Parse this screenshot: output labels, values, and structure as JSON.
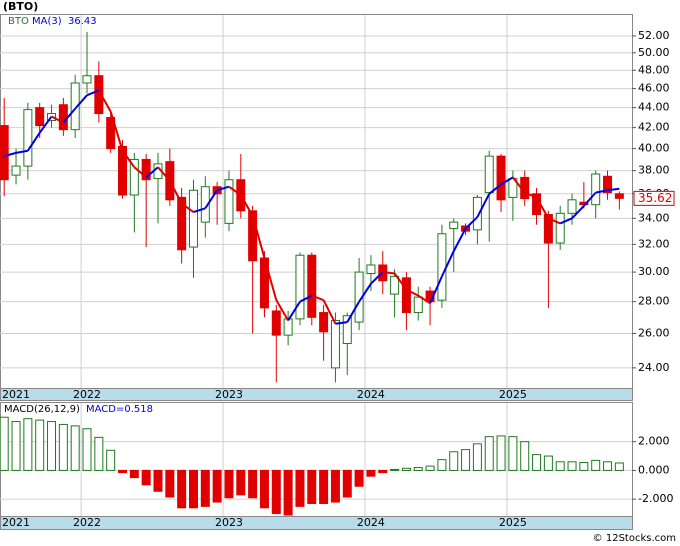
{
  "footer": "© 12Stocks.com",
  "chart_data": [
    {
      "type": "candlestick",
      "title": "(BTO)",
      "log_scale": true,
      "grid": true,
      "categories": [
        "2021",
        null,
        null,
        null,
        null,
        null,
        null,
        "2022",
        null,
        null,
        null,
        null,
        null,
        null,
        null,
        null,
        null,
        null,
        null,
        "2023",
        null,
        null,
        null,
        null,
        null,
        null,
        null,
        null,
        null,
        null,
        null,
        "2024",
        null,
        null,
        null,
        null,
        null,
        null,
        null,
        null,
        null,
        null,
        null,
        "2025",
        null,
        null,
        null,
        null,
        null,
        null,
        null,
        null,
        null
      ],
      "series": [
        {
          "name": "BTO",
          "colors": {
            "up": "#1f7a1f",
            "down": "#e00000"
          },
          "open": [
            42.2,
            37.6,
            38.4,
            44,
            42.7,
            44.3,
            41.8,
            46.6,
            47.4,
            43,
            40.2,
            35.9,
            39,
            37.3,
            38.8,
            35.7,
            31.8,
            33.7,
            36.6,
            33.6,
            37.2,
            34.6,
            31,
            27.4,
            25.9,
            26.9,
            31.2,
            27.3,
            24,
            25.4,
            26.7,
            29.9,
            30.5,
            28.5,
            29.6,
            27.3,
            28.7,
            28.1,
            33.2,
            33.4,
            33.1,
            36.1,
            39.3,
            35.7,
            37.4,
            36,
            34.3,
            32.1,
            34.4,
            35.3,
            35.1,
            37.5,
            36
          ],
          "high": [
            45,
            40,
            44.5,
            44.5,
            44.3,
            45,
            47.5,
            52.5,
            49,
            43.5,
            40.8,
            39.6,
            39.5,
            39.6,
            40,
            36.5,
            37.2,
            37.5,
            37,
            38,
            39.5,
            35,
            31.5,
            27.8,
            27.4,
            31.4,
            31.4,
            27.8,
            27.3,
            27.3,
            31,
            31.2,
            31.5,
            30.2,
            30,
            29,
            29,
            33.5,
            34,
            33.6,
            35.9,
            39.8,
            39.5,
            38,
            38,
            36.5,
            34.6,
            35,
            36,
            37,
            38,
            38,
            36.2
          ],
          "low": [
            35.8,
            36.8,
            37.2,
            41,
            42,
            41.2,
            41,
            45.5,
            42.5,
            39.6,
            35.6,
            32.9,
            31.8,
            33.6,
            35,
            30.6,
            29.6,
            32.5,
            33.5,
            33,
            34,
            26,
            27,
            23.2,
            25.3,
            26.5,
            26.5,
            24.4,
            23.2,
            23.6,
            26.2,
            28.7,
            28.5,
            27,
            26.2,
            26.8,
            26.5,
            27.6,
            30,
            32.7,
            32,
            32.2,
            34.5,
            33.8,
            35,
            33.5,
            27.6,
            31.6,
            33.5,
            34.8,
            34,
            35.5,
            34.7
          ],
          "close": [
            37.2,
            38.4,
            43.8,
            42.2,
            43.4,
            41.8,
            46.6,
            47.4,
            43.4,
            40,
            35.9,
            39,
            37.2,
            38.6,
            35.5,
            31.6,
            36.3,
            36.6,
            36.0,
            37.2,
            34.6,
            30.8,
            27.6,
            25.9,
            26.9,
            31.2,
            27,
            26.1,
            26.8,
            27.1,
            30,
            30.5,
            29.4,
            29.7,
            27.3,
            28.3,
            28,
            32.8,
            33.7,
            33,
            35.7,
            39.3,
            35.5,
            37.3,
            35.6,
            34.3,
            32.1,
            34.4,
            35.5,
            35.1,
            37.7,
            36.1,
            35.62
          ],
          "last_label": "35.62"
        },
        {
          "name": "MA(3)",
          "type": "line",
          "color_up": "#0000dd",
          "color_down": "#e00000",
          "value_label": "36.43",
          "values": [
            39.3,
            39.6,
            39.8,
            41.5,
            43.1,
            42.5,
            43.9,
            45.3,
            45.8,
            43.6,
            39.8,
            38.3,
            37.4,
            38.3,
            37.1,
            35.2,
            34.5,
            34.8,
            36.3,
            36.6,
            35.9,
            34.2,
            31.0,
            28.1,
            26.8,
            28.0,
            28.4,
            28.1,
            26.6,
            26.7,
            28.0,
            29.2,
            30.0,
            29.9,
            28.8,
            28.4,
            27.9,
            29.7,
            31.5,
            33.2,
            34.1,
            36.0,
            36.8,
            37.4,
            36.1,
            35.7,
            34.0,
            33.6,
            34.0,
            35.0,
            36.1,
            36.3,
            36.43
          ]
        }
      ],
      "ylim": [
        22.9,
        54.6
      ],
      "yticks": [
        {
          "value": 24,
          "label": "24.00"
        },
        {
          "value": 26,
          "label": "26.00"
        },
        {
          "value": 28,
          "label": "28.00"
        },
        {
          "value": 30,
          "label": "30.00"
        },
        {
          "value": 32,
          "label": "32.00"
        },
        {
          "value": 34,
          "label": "34.00"
        },
        {
          "value": 36,
          "label": "36.00"
        },
        {
          "value": 38,
          "label": "38.00"
        },
        {
          "value": 40,
          "label": "40.00"
        },
        {
          "value": 42,
          "label": "42.00"
        },
        {
          "value": 44,
          "label": "44.00"
        },
        {
          "value": 46,
          "label": "46.00"
        },
        {
          "value": 48,
          "label": "48.00"
        },
        {
          "value": 50,
          "label": "50.00"
        },
        {
          "value": 52,
          "label": "52.00"
        }
      ]
    },
    {
      "type": "bar",
      "name": "MACD(26,12,9)",
      "value_label": "MACD=0.518",
      "grid": true,
      "colors": {
        "up": "#1f7a1f",
        "down": "#e00000"
      },
      "values": [
        3.7,
        3.4,
        3.6,
        3.5,
        3.4,
        3.2,
        3.1,
        2.9,
        2.3,
        1.4,
        -0.15,
        -0.5,
        -1.0,
        -1.45,
        -1.85,
        -2.6,
        -2.6,
        -2.5,
        -2.2,
        -1.9,
        -1.7,
        -1.9,
        -2.6,
        -3.0,
        -3.1,
        -2.5,
        -2.3,
        -2.3,
        -2.2,
        -1.85,
        -1.1,
        -0.4,
        -0.15,
        0.07,
        0.15,
        0.2,
        0.3,
        0.75,
        1.3,
        1.45,
        1.85,
        2.35,
        2.4,
        2.35,
        2.0,
        1.1,
        1.0,
        0.6,
        0.6,
        0.55,
        0.7,
        0.6,
        0.518
      ],
      "ylim": [
        -3.17,
        4.69
      ],
      "yticks": [
        {
          "value": -2,
          "label": "-2.000"
        },
        {
          "value": 0,
          "label": "0.000"
        },
        {
          "value": 2,
          "label": "2.000"
        }
      ]
    }
  ]
}
